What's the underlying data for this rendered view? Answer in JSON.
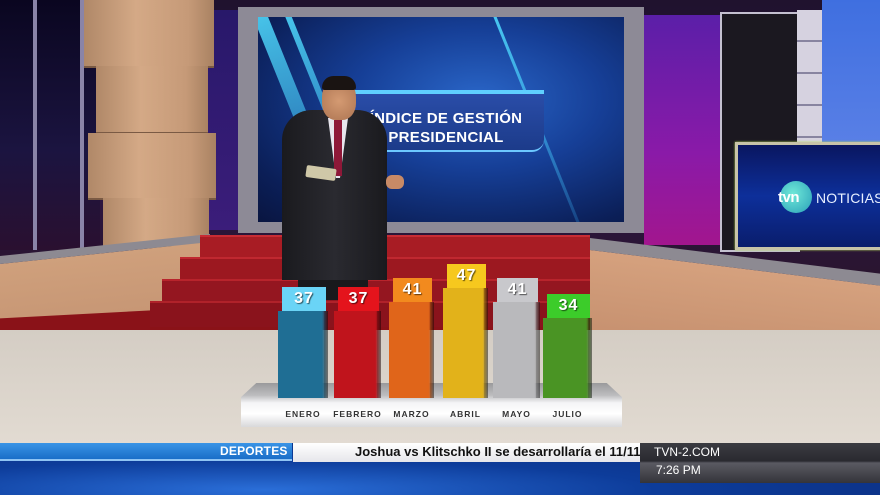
{
  "screen": {
    "wall_title_line1": "ÍNDICE DE GESTIÓN",
    "wall_title_line2": "PRESIDENCIAL",
    "monitor_logo": "tvn",
    "monitor_brand": "NOTICIAS"
  },
  "ticker": {
    "category": "DEPORTES",
    "headline": "Joshua vs Klitschko II se desarrollaría el 11/11",
    "site": "TVN-2.COM",
    "time": "7:26 PM"
  },
  "chart_data": {
    "type": "bar",
    "title": "ÍNDICE DE GESTIÓN PRESIDENCIAL",
    "xlabel": "",
    "ylabel": "",
    "categories": [
      "ENERO",
      "FEBRERO",
      "MARZO",
      "ABRIL",
      "MAYO",
      "JULIO"
    ],
    "values": [
      37,
      37,
      41,
      47,
      41,
      34
    ],
    "colors": [
      "#1f6e94",
      "#c0141c",
      "#e0651a",
      "#e2b21a",
      "#b9b9bc",
      "#4a9424"
    ],
    "label_colors": [
      "#6ad4f6",
      "#e4141c",
      "#f28a1e",
      "#f6c81e",
      "#c8c8cc",
      "#3ccc2a"
    ],
    "grid": false,
    "legend": "none",
    "data_labels": [
      "37",
      "37",
      "41",
      "47",
      "41",
      "34"
    ]
  }
}
